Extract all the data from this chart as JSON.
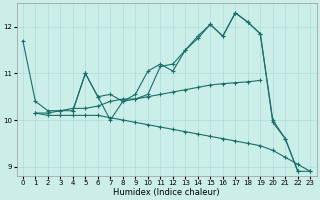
{
  "xlabel": "Humidex (Indice chaleur)",
  "bg_color": "#cceee8",
  "line_color": "#1a6e6a",
  "grid_color": "#aadddd",
  "xlim": [
    -0.5,
    23.5
  ],
  "ylim": [
    8.8,
    12.5
  ],
  "yticks": [
    9,
    10,
    11,
    12
  ],
  "xticks": [
    0,
    1,
    2,
    3,
    4,
    5,
    6,
    7,
    8,
    9,
    10,
    11,
    12,
    13,
    14,
    15,
    16,
    17,
    18,
    19,
    20,
    21,
    22,
    23
  ],
  "lines": [
    {
      "x": [
        0,
        1,
        2,
        3,
        4,
        5,
        6,
        7,
        8,
        9,
        10,
        11,
        12,
        13,
        14,
        15,
        16,
        17,
        18,
        19,
        20,
        21,
        22
      ],
      "y": [
        11.7,
        10.4,
        10.2,
        10.2,
        10.2,
        11.0,
        10.5,
        10.0,
        10.4,
        10.55,
        11.05,
        11.2,
        11.05,
        11.5,
        11.8,
        12.05,
        11.8,
        12.3,
        12.1,
        11.85,
        10.0,
        9.6,
        8.9
      ]
    },
    {
      "x": [
        1,
        2,
        3,
        4,
        5,
        6,
        7,
        8,
        9,
        10,
        11,
        12,
        13,
        14,
        15,
        16,
        17,
        18,
        19,
        20,
        21,
        22,
        23
      ],
      "y": [
        10.15,
        10.1,
        10.1,
        10.1,
        10.1,
        10.1,
        10.05,
        10.0,
        9.95,
        9.9,
        9.85,
        9.8,
        9.75,
        9.7,
        9.65,
        9.6,
        9.55,
        9.5,
        9.45,
        9.35,
        9.2,
        9.05,
        8.9
      ]
    },
    {
      "x": [
        1,
        2,
        3,
        4,
        5,
        6,
        7,
        8,
        9,
        10,
        11,
        12,
        13,
        14,
        15,
        16,
        17,
        18,
        19
      ],
      "y": [
        10.15,
        10.15,
        10.2,
        10.25,
        10.25,
        10.3,
        10.4,
        10.45,
        10.45,
        10.5,
        10.55,
        10.6,
        10.65,
        10.7,
        10.75,
        10.78,
        10.8,
        10.82,
        10.85
      ]
    },
    {
      "x": [
        4,
        5,
        6,
        7,
        8,
        9,
        10,
        11,
        12,
        13,
        14,
        15,
        16,
        17,
        18,
        19,
        20,
        21,
        22,
        23
      ],
      "y": [
        10.2,
        11.0,
        10.5,
        10.55,
        10.4,
        10.45,
        10.55,
        11.15,
        11.2,
        11.5,
        11.75,
        12.05,
        11.8,
        12.3,
        12.1,
        11.85,
        9.95,
        9.6,
        8.9,
        8.9
      ]
    }
  ]
}
